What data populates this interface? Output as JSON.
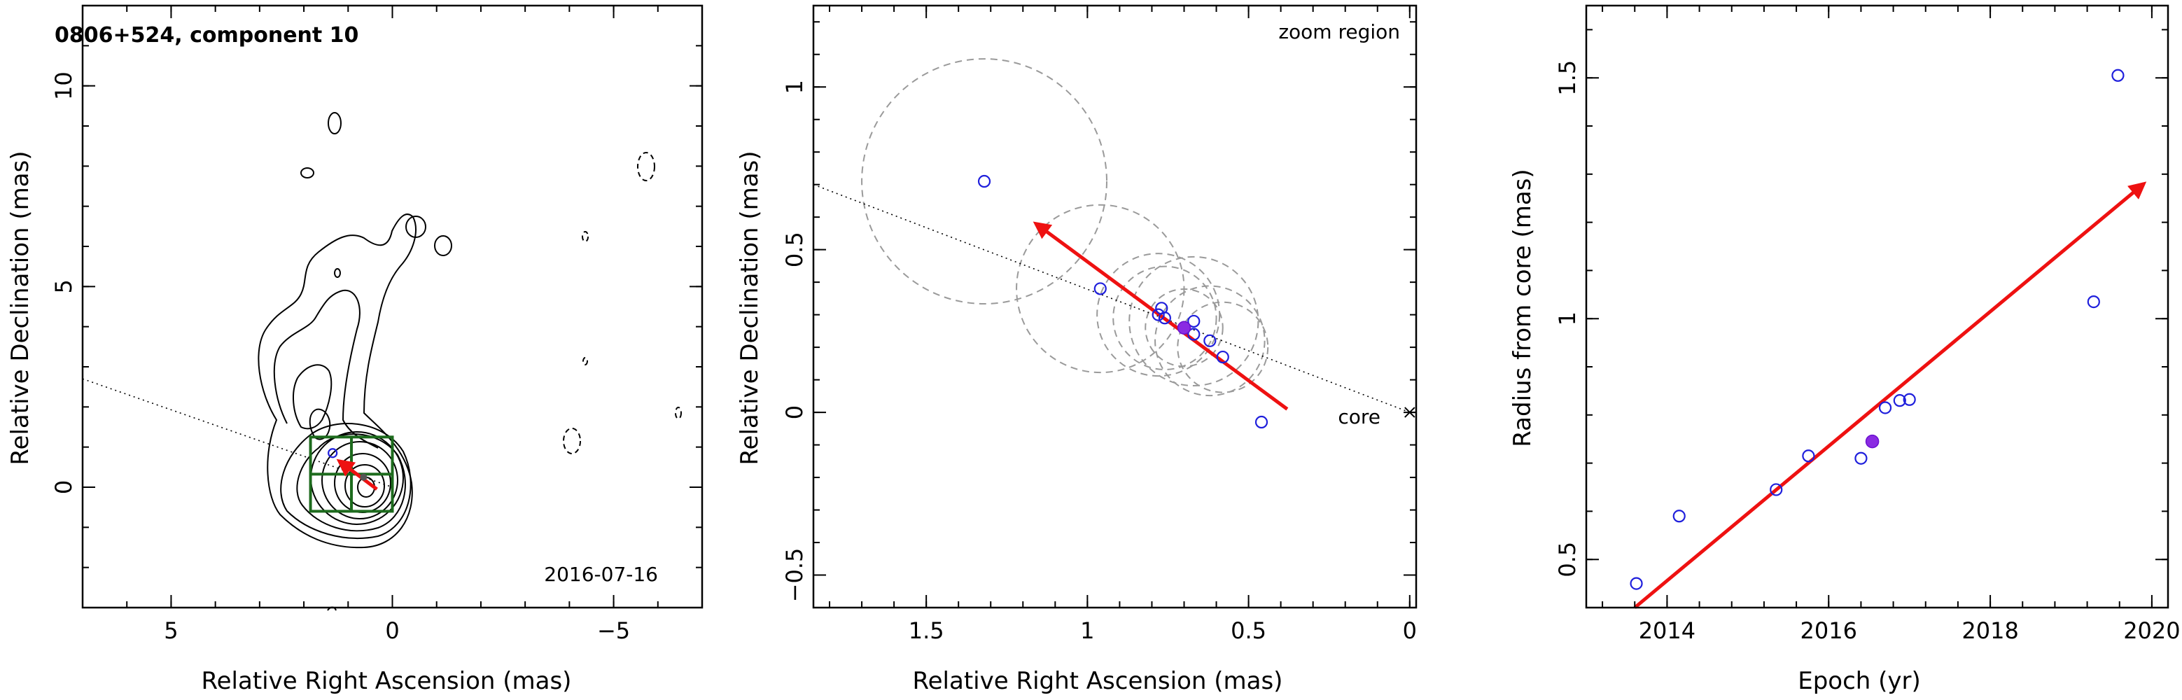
{
  "figure": {
    "background": "#ffffff"
  },
  "chart_data": [
    {
      "type": "scatter",
      "title": "0806+524, component 10",
      "annotation": "2016-07-16",
      "xlabel": "Relative Right Ascension (mas)",
      "ylabel": "Relative Declination (mas)",
      "xlim": [
        7,
        -7
      ],
      "ylim": [
        -3,
        12
      ],
      "xticks": [
        5,
        0,
        -5
      ],
      "yticks": [
        0,
        5,
        10
      ],
      "xtick_labels": [
        "5",
        "0",
        "−5"
      ],
      "ytick_labels": [
        "0",
        "5",
        "10"
      ],
      "zoom_box": {
        "x": [
          1.85,
          0
        ],
        "y": [
          -0.6,
          1.25
        ]
      },
      "position_angle_line": [
        {
          "x": 7,
          "y": 2.7
        },
        {
          "x": 0,
          "y": 0
        }
      ],
      "component": {
        "x": 0.65,
        "y": 0.25
      },
      "arrow": {
        "from": {
          "x": 0.35,
          "y": -0.05
        },
        "to": {
          "x": 1.2,
          "y": 0.65
        }
      },
      "contour_color": "#000000"
    },
    {
      "type": "scatter",
      "annotation": "zoom region",
      "core_label": "core",
      "xlabel": "Relative Right Ascension (mas)",
      "ylabel": "Relative Declination (mas)",
      "xlim": [
        1.85,
        -0.02
      ],
      "ylim": [
        -0.6,
        1.25
      ],
      "xticks": [
        1.5,
        1,
        0.5,
        0
      ],
      "yticks": [
        -0.5,
        0,
        0.5,
        1
      ],
      "xtick_labels": [
        "1.5",
        "1",
        "0.5",
        "0"
      ],
      "ytick_labels": [
        "−0.5",
        "0",
        "0.5",
        "1"
      ],
      "series": [
        {
          "points": [
            {
              "x": 1.32,
              "y": 0.71
            },
            {
              "x": 0.96,
              "y": 0.38
            },
            {
              "x": 0.78,
              "y": 0.3
            },
            {
              "x": 0.77,
              "y": 0.32
            },
            {
              "x": 0.76,
              "y": 0.29
            },
            {
              "x": 0.67,
              "y": 0.24
            },
            {
              "x": 0.67,
              "y": 0.28
            },
            {
              "x": 0.62,
              "y": 0.22
            },
            {
              "x": 0.58,
              "y": 0.17
            },
            {
              "x": 0.46,
              "y": -0.03
            }
          ]
        }
      ],
      "highlight_point": {
        "x": 0.7,
        "y": 0.26
      },
      "error_circles": [
        {
          "x": 1.32,
          "y": 0.71,
          "r": 0.38
        },
        {
          "x": 0.96,
          "y": 0.38,
          "r": 0.26
        },
        {
          "x": 0.78,
          "y": 0.3,
          "r": 0.19
        },
        {
          "x": 0.76,
          "y": 0.29,
          "r": 0.16
        },
        {
          "x": 0.67,
          "y": 0.28,
          "r": 0.2
        },
        {
          "x": 0.62,
          "y": 0.22,
          "r": 0.17
        },
        {
          "x": 0.58,
          "y": 0.2,
          "r": 0.14
        },
        {
          "x": 0.7,
          "y": 0.26,
          "r": 0.12
        }
      ],
      "position_angle_line": [
        {
          "x": 1.85,
          "y": 0.7
        },
        {
          "x": 0,
          "y": 0
        }
      ],
      "arrow": {
        "from": {
          "x": 0.38,
          "y": 0.01
        },
        "to": {
          "x": 1.16,
          "y": 0.58
        }
      },
      "point_color": "#1f1fdc",
      "highlight_color": "#8a2be2",
      "arrow_color": "#ee1111"
    },
    {
      "type": "scatter",
      "xlabel": "Epoch (yr)",
      "ylabel": "Radius from core (mas)",
      "xlim": [
        2013,
        2020.2
      ],
      "ylim": [
        0.4,
        1.65
      ],
      "xticks": [
        2014,
        2016,
        2018,
        2020
      ],
      "yticks": [
        0.5,
        1,
        1.5
      ],
      "xtick_labels": [
        "2014",
        "2016",
        "2018",
        "2020"
      ],
      "ytick_labels": [
        "0.5",
        "1",
        "1.5"
      ],
      "series": [
        {
          "points": [
            {
              "x": 2013.62,
              "y": 0.45
            },
            {
              "x": 2014.15,
              "y": 0.59
            },
            {
              "x": 2015.35,
              "y": 0.645
            },
            {
              "x": 2015.75,
              "y": 0.715
            },
            {
              "x": 2016.4,
              "y": 0.71
            },
            {
              "x": 2016.7,
              "y": 0.815
            },
            {
              "x": 2016.88,
              "y": 0.83
            },
            {
              "x": 2017.0,
              "y": 0.832
            },
            {
              "x": 2019.28,
              "y": 1.035
            },
            {
              "x": 2019.58,
              "y": 1.505
            }
          ]
        }
      ],
      "highlight_point": {
        "x": 2016.54,
        "y": 0.745
      },
      "fit_arrow": {
        "from": {
          "x": 2013.6,
          "y": 0.4
        },
        "to": {
          "x": 2019.9,
          "y": 1.28
        }
      },
      "point_color": "#1f1fdc",
      "highlight_color": "#8a2be2",
      "arrow_color": "#ee1111"
    }
  ]
}
